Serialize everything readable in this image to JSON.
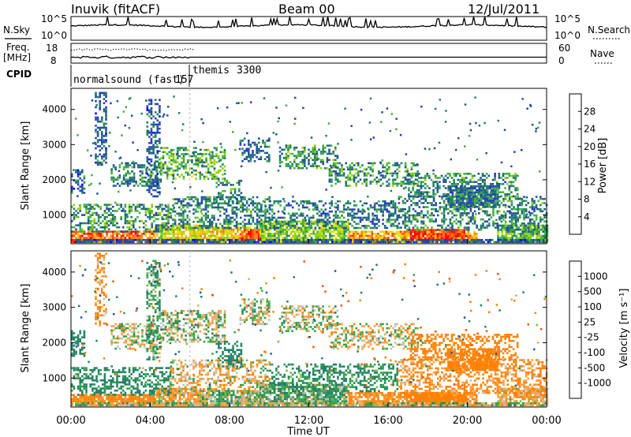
{
  "header": {
    "station": "Inuvik (fitACF)",
    "beam": "Beam 00",
    "date": "12/Jul/2011"
  },
  "panels": {
    "nsky": {
      "left_label": "N.Sky",
      "right_label": "N.Search",
      "y_ticks_left": [
        "10^5",
        "10^0"
      ],
      "y_ticks_right": [
        "10^5",
        "10^0"
      ]
    },
    "freq": {
      "left_label": "Freq.",
      "left_unit": "[MHz]",
      "right_label": "Nave",
      "y_ticks_left": [
        "18",
        "8"
      ],
      "y_ticks_right": [
        "60",
        "0"
      ]
    },
    "cpid": {
      "label": "CPID",
      "programs": [
        {
          "name": "normalsound (fast)",
          "id": "157",
          "start_hour": 0
        },
        {
          "name": "themis",
          "id": "3300",
          "start_hour": 6
        }
      ]
    },
    "power": {
      "ylabel": "Slant Range [km]",
      "colorbar_label": "Power [dB]",
      "colorbar_ticks": [
        "28",
        "24",
        "20",
        "16",
        "12",
        "8",
        "4"
      ],
      "colorbar_colors": [
        "#ff0000",
        "#ff4000",
        "#ff8000",
        "#ffc000",
        "#e0e000",
        "#90d000",
        "#40b040",
        "#208060",
        "#205098",
        "#2838c8",
        "#0000ff"
      ]
    },
    "velocity": {
      "ylabel": "Slant Range [km]",
      "colorbar_label": "Velocity [m s⁻¹]",
      "colorbar_ticks": [
        "1000",
        "500",
        "100",
        "25",
        "-25",
        "-100",
        "-500",
        "-1000"
      ],
      "colorbar_colors": [
        "#2030c0",
        "#2050b0",
        "#208060",
        "#30a050",
        "#70c040",
        "#c0c0b8",
        "#c0c0b8",
        "#ffa040",
        "#ff8000",
        "#ff5000",
        "#ff2000"
      ]
    }
  },
  "x_axis": {
    "label": "Time UT",
    "ticks": [
      "00:00",
      "04:00",
      "08:00",
      "12:00",
      "16:00",
      "20:00",
      "00:00"
    ]
  },
  "chart_data": {
    "type": "heatmap",
    "title": "Inuvik (fitACF) Beam 00 12/Jul/2011",
    "xlabel": "Time UT",
    "ylabel": "Slant Range [km]",
    "xlim_hours": [
      0,
      24
    ],
    "ylim_km": [
      180,
      4600
    ],
    "y_ticks": [
      1000,
      2000,
      3000,
      4000
    ],
    "nsky_ylim_log10": [
      0,
      5
    ],
    "freq_ylim_mhz": [
      8,
      18
    ],
    "freq_mhz_approx": 11,
    "nave_ylim": [
      0,
      60
    ],
    "power_range_db": [
      0,
      30
    ],
    "velocity_range_ms": [
      -1000,
      1000
    ],
    "echo_regions": [
      {
        "t0": 0.0,
        "t1": 4.2,
        "r0": 200,
        "r1": 500,
        "power_db": 26,
        "velocity_ms": -200
      },
      {
        "t0": 4.2,
        "t1": 6.5,
        "r0": 200,
        "r1": 700,
        "power_db": 18,
        "velocity_ms": -60
      },
      {
        "t0": 6.5,
        "t1": 9.0,
        "r0": 200,
        "r1": 650,
        "power_db": 20,
        "velocity_ms": 40
      },
      {
        "t0": 8.5,
        "t1": 9.7,
        "r0": 250,
        "r1": 600,
        "power_db": 27,
        "velocity_ms": 0
      },
      {
        "t0": 9.5,
        "t1": 14.0,
        "r0": 200,
        "r1": 800,
        "power_db": 14,
        "velocity_ms": 60
      },
      {
        "t0": 14.0,
        "t1": 20.5,
        "r0": 200,
        "r1": 550,
        "power_db": 22,
        "velocity_ms": -150
      },
      {
        "t0": 17.0,
        "t1": 20.0,
        "r0": 250,
        "r1": 550,
        "power_db": 28,
        "velocity_ms": -300
      },
      {
        "t0": 21.5,
        "t1": 24.0,
        "r0": 200,
        "r1": 700,
        "power_db": 12,
        "velocity_ms": -80
      },
      {
        "t0": 0.2,
        "t1": 24.0,
        "r0": 200,
        "r1": 260,
        "power_db": 6,
        "velocity_ms": 10
      },
      {
        "t0": 0.0,
        "t1": 5.0,
        "r0": 500,
        "r1": 1300,
        "power_db": 10,
        "velocity_ms": 150
      },
      {
        "t0": 5.0,
        "t1": 10.0,
        "r0": 600,
        "r1": 1500,
        "power_db": 9,
        "velocity_ms": -40
      },
      {
        "t0": 10.0,
        "t1": 16.5,
        "r0": 600,
        "r1": 1400,
        "power_db": 8,
        "velocity_ms": 120
      },
      {
        "t0": 16.5,
        "t1": 24.0,
        "r0": 550,
        "r1": 1500,
        "power_db": 9,
        "velocity_ms": -120
      },
      {
        "t0": 0.0,
        "t1": 0.7,
        "r0": 1600,
        "r1": 2300,
        "power_db": 6,
        "velocity_ms": 300
      },
      {
        "t0": 2.0,
        "t1": 4.5,
        "r0": 1800,
        "r1": 2500,
        "power_db": 9,
        "velocity_ms": 0
      },
      {
        "t0": 4.5,
        "t1": 7.8,
        "r0": 2000,
        "r1": 2900,
        "power_db": 12,
        "velocity_ms": 10
      },
      {
        "t0": 7.3,
        "t1": 8.6,
        "r0": 1300,
        "r1": 2000,
        "power_db": 10,
        "velocity_ms": 200
      },
      {
        "t0": 10.5,
        "t1": 13.5,
        "r0": 2300,
        "r1": 3000,
        "power_db": 10,
        "velocity_ms": 0
      },
      {
        "t0": 13.0,
        "t1": 17.5,
        "r0": 1800,
        "r1": 2500,
        "power_db": 10,
        "velocity_ms": -20
      },
      {
        "t0": 17.0,
        "t1": 22.5,
        "r0": 1500,
        "r1": 2200,
        "power_db": 9,
        "velocity_ms": -200
      },
      {
        "t0": 19.0,
        "t1": 21.5,
        "r0": 1200,
        "r1": 1800,
        "power_db": 8,
        "velocity_ms": -250
      },
      {
        "t0": 8.5,
        "t1": 10.0,
        "r0": 2500,
        "r1": 3200,
        "power_db": 7,
        "velocity_ms": 0
      },
      {
        "t0": 1.2,
        "t1": 1.8,
        "r0": 2400,
        "r1": 4500,
        "power_db": 6,
        "velocity_ms": -100
      },
      {
        "t0": 3.8,
        "t1": 4.5,
        "r0": 1500,
        "r1": 4300,
        "power_db": 6,
        "velocity_ms": 80
      }
    ]
  }
}
